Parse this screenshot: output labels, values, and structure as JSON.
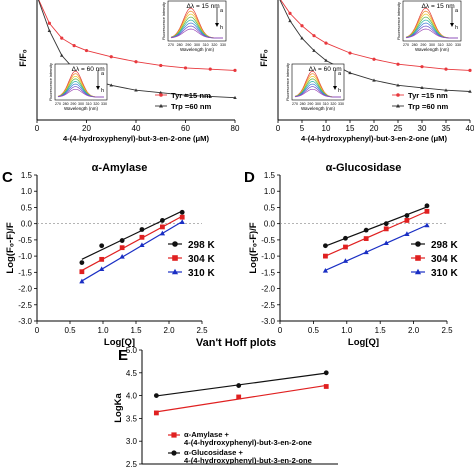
{
  "panel_labels": [
    "C",
    "D",
    "E"
  ],
  "chart_data": [
    {
      "id": "panel-a",
      "type": "line",
      "title": "",
      "ylabel": "F/F₀",
      "xlabel": "4-(4-hydroxyphenyl)-but-3-en-2-one (μM)",
      "xticks": [
        "0",
        "20",
        "40",
        "60",
        "80"
      ],
      "xlim": [
        0,
        80
      ],
      "ylim": [
        0,
        1
      ],
      "x": [
        0,
        5,
        10,
        15,
        20,
        30,
        40,
        50,
        60,
        70,
        80
      ],
      "series": [
        {
          "name": "Tyr =15 nm",
          "color": "#e8383d",
          "marker": "circle",
          "values": [
            1.0,
            0.78,
            0.66,
            0.6,
            0.56,
            0.51,
            0.47,
            0.44,
            0.42,
            0.41,
            0.4
          ]
        },
        {
          "name": "Trp =60 nm",
          "color": "#333333",
          "marker": "triangle",
          "values": [
            1.0,
            0.72,
            0.52,
            0.41,
            0.34,
            0.28,
            0.24,
            0.22,
            0.2,
            0.19,
            0.18
          ]
        }
      ],
      "insets": [
        {
          "label": "Δλ = 15 nm",
          "arrow_labels": [
            "a",
            "h"
          ],
          "xlabel": "Wavelength (nm)",
          "ylabel": "Fluorescence intensity",
          "xticks": [
            "270",
            "280",
            "290",
            "300",
            "310",
            "320",
            "330"
          ]
        },
        {
          "label": "Δλ = 60 nm",
          "arrow_labels": [
            "a",
            "h"
          ],
          "xlabel": "Wavelength (nm)",
          "ylabel": "Fluorescence intensity",
          "xticks": [
            "270",
            "280",
            "290",
            "300",
            "310",
            "320",
            "330"
          ]
        }
      ]
    },
    {
      "id": "panel-b",
      "type": "line",
      "title": "",
      "ylabel": "F/F₀",
      "xlabel": "4-(4-hydroxyphenyl)-but-3-en-2-one (μM)",
      "xticks": [
        "0",
        "5",
        "10",
        "15",
        "20",
        "25",
        "30",
        "35",
        "40"
      ],
      "xlim": [
        0,
        40
      ],
      "ylim": [
        0,
        1
      ],
      "x": [
        0,
        2.5,
        5,
        7.5,
        10,
        15,
        20,
        25,
        30,
        35,
        40
      ],
      "series": [
        {
          "name": "Tyr =15 nm",
          "color": "#e8383d",
          "marker": "circle",
          "values": [
            1.0,
            0.86,
            0.76,
            0.68,
            0.62,
            0.54,
            0.49,
            0.45,
            0.43,
            0.41,
            0.4
          ]
        },
        {
          "name": "Trp =60 nm",
          "color": "#333333",
          "marker": "triangle",
          "values": [
            1.0,
            0.8,
            0.66,
            0.56,
            0.48,
            0.38,
            0.32,
            0.28,
            0.26,
            0.24,
            0.23
          ]
        }
      ],
      "insets": [
        {
          "label": "Δλ = 15 nm",
          "arrow_labels": [
            "a",
            "h"
          ],
          "xlabel": "Wavelength (nm)",
          "ylabel": "Fluorescence intensity",
          "xticks": [
            "270",
            "280",
            "290",
            "300",
            "310",
            "320",
            "330"
          ]
        },
        {
          "label": "Δλ = 60 nm",
          "arrow_labels": [
            "a",
            "h"
          ],
          "xlabel": "Wavelength (nm)",
          "ylabel": "Fluorescence intensity",
          "xticks": [
            "270",
            "280",
            "290",
            "300",
            "310",
            "320",
            "330"
          ]
        }
      ]
    },
    {
      "id": "panel-c",
      "type": "scatter",
      "title": "α-Amylase",
      "xlabel": "Log[Q]",
      "ylabel": "Log(F₀-F)/F",
      "xlim": [
        0,
        2.5
      ],
      "ylim": [
        -3.0,
        1.5
      ],
      "xticks": [
        "0",
        "0.5",
        "1.0",
        "1.5",
        "2.0",
        "2.5"
      ],
      "yticks": [
        "-3.0",
        "-2.5",
        "-2.0",
        "-1.5",
        "-1.0",
        "-0.5",
        "0.0",
        "0.5",
        "1.0",
        "1.5"
      ],
      "legend": "lower-right",
      "x": [
        0.68,
        0.98,
        1.29,
        1.59,
        1.9,
        2.2
      ],
      "series": [
        {
          "name": "298 K",
          "color": "#111111",
          "marker": "circle",
          "values": [
            -1.2,
            -0.68,
            -0.52,
            -0.18,
            0.1,
            0.35
          ]
        },
        {
          "name": "304 K",
          "color": "#e02020",
          "marker": "square",
          "values": [
            -1.48,
            -1.1,
            -0.74,
            -0.42,
            -0.1,
            0.2
          ]
        },
        {
          "name": "310 K",
          "color": "#1a2fc4",
          "marker": "triangle",
          "values": [
            -1.78,
            -1.4,
            -1.02,
            -0.66,
            -0.3,
            0.05
          ]
        }
      ]
    },
    {
      "id": "panel-d",
      "type": "scatter",
      "title": "α-Glucosidase",
      "xlabel": "Log[Q]",
      "ylabel": "Log(F₀-F)/F",
      "xlim": [
        0,
        2.5
      ],
      "ylim": [
        -3.0,
        1.5
      ],
      "xticks": [
        "0",
        "0.5",
        "1.0",
        "1.5",
        "2.0",
        "2.5"
      ],
      "yticks": [
        "-3.0",
        "-2.5",
        "-2.0",
        "-1.5",
        "-1.0",
        "-0.5",
        "0.0",
        "0.5",
        "1.0",
        "1.5"
      ],
      "legend": "lower-right",
      "x": [
        0.68,
        0.98,
        1.29,
        1.59,
        1.9,
        2.2
      ],
      "series": [
        {
          "name": "298 K",
          "color": "#111111",
          "marker": "circle",
          "values": [
            -0.68,
            -0.45,
            -0.2,
            0.0,
            0.25,
            0.55
          ]
        },
        {
          "name": "304 K",
          "color": "#e02020",
          "marker": "square",
          "values": [
            -1.0,
            -0.72,
            -0.46,
            -0.16,
            0.1,
            0.38
          ]
        },
        {
          "name": "310 K",
          "color": "#1a2fc4",
          "marker": "triangle",
          "values": [
            -1.45,
            -1.15,
            -0.88,
            -0.6,
            -0.32,
            -0.05
          ]
        }
      ]
    },
    {
      "id": "panel-e",
      "type": "line",
      "title": "Van't Hoff plots",
      "xlabel": "",
      "ylabel": "LogKa",
      "ylim": [
        2.5,
        5.0
      ],
      "yticks": [
        "2.5",
        "3.0",
        "3.5",
        "4.0",
        "4.5",
        "5.0"
      ],
      "xlim": [
        0.003215,
        0.003365
      ],
      "x": [
        0.003226,
        0.003289,
        0.003356
      ],
      "series": [
        {
          "name": "α-Amylase +\n4-(4-hydroxyphenyl)-but-3-en-2-one",
          "color": "#e02020",
          "marker": "square",
          "values": [
            3.62,
            3.97,
            4.2
          ]
        },
        {
          "name": "α-Glucosidase +\n4-(4-hydroxyphenyl)-but-3-en-2-one",
          "color": "#111111",
          "marker": "circle",
          "values": [
            4.0,
            4.22,
            4.5
          ]
        }
      ],
      "legend": "lower-left"
    }
  ]
}
